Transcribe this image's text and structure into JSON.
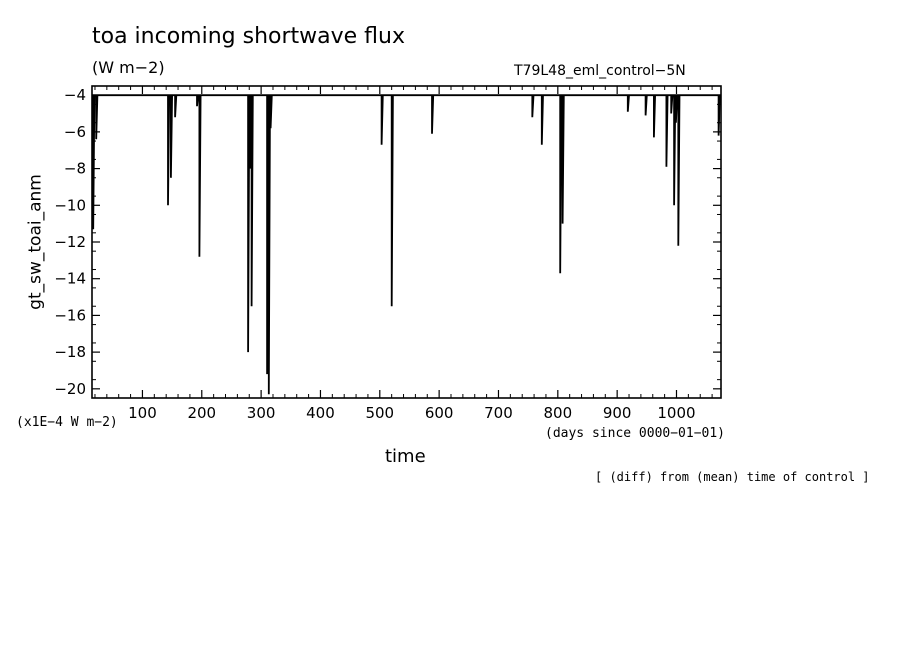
{
  "header": {
    "title": "toa incoming shortwave flux",
    "units": "(W m−2)",
    "run_name": "T79L48_eml_control−5N"
  },
  "footer": {
    "scale_note": "(x1E−4 W m−2)",
    "xaxis_units": "(days since 0000−01−01)",
    "diff_note": "[ (diff) from (mean) time of control ]"
  },
  "chart_data": {
    "type": "line",
    "title": "toa incoming shortwave flux",
    "xlabel": "time",
    "ylabel": "gt_sw_toai_anm",
    "xlim": [
      15,
      1075
    ],
    "ylim": [
      -20.5,
      -3.5
    ],
    "grid": false,
    "legend": "none",
    "baseline": -4,
    "xticks": [
      100,
      200,
      300,
      400,
      500,
      600,
      700,
      800,
      900,
      1000
    ],
    "yticks": [
      -4,
      -6,
      -8,
      -10,
      -12,
      -14,
      -16,
      -18,
      -20
    ],
    "series": [
      {
        "x": [
          15,
          17,
          20,
          22,
          143,
          148,
          155,
          192,
          196,
          278,
          281,
          284,
          310,
          313,
          316,
          503,
          520,
          588,
          757,
          773,
          804,
          808,
          918,
          948,
          962,
          983,
          991,
          996,
          999,
          1003,
          1071,
          1075
        ],
        "values": [
          -4,
          -11.3,
          -4,
          -6.4,
          -10,
          -8.5,
          -5.2,
          -4.6,
          -12.8,
          -18,
          -8,
          -15.5,
          -19.2,
          -20.3,
          -5.8,
          -6.7,
          -15.5,
          -6.1,
          -5.2,
          -6.7,
          -13.7,
          -11,
          -4.9,
          -5.1,
          -6.3,
          -7.9,
          -5,
          -10,
          -5.5,
          -12.2,
          -6.2,
          -4
        ]
      }
    ]
  }
}
